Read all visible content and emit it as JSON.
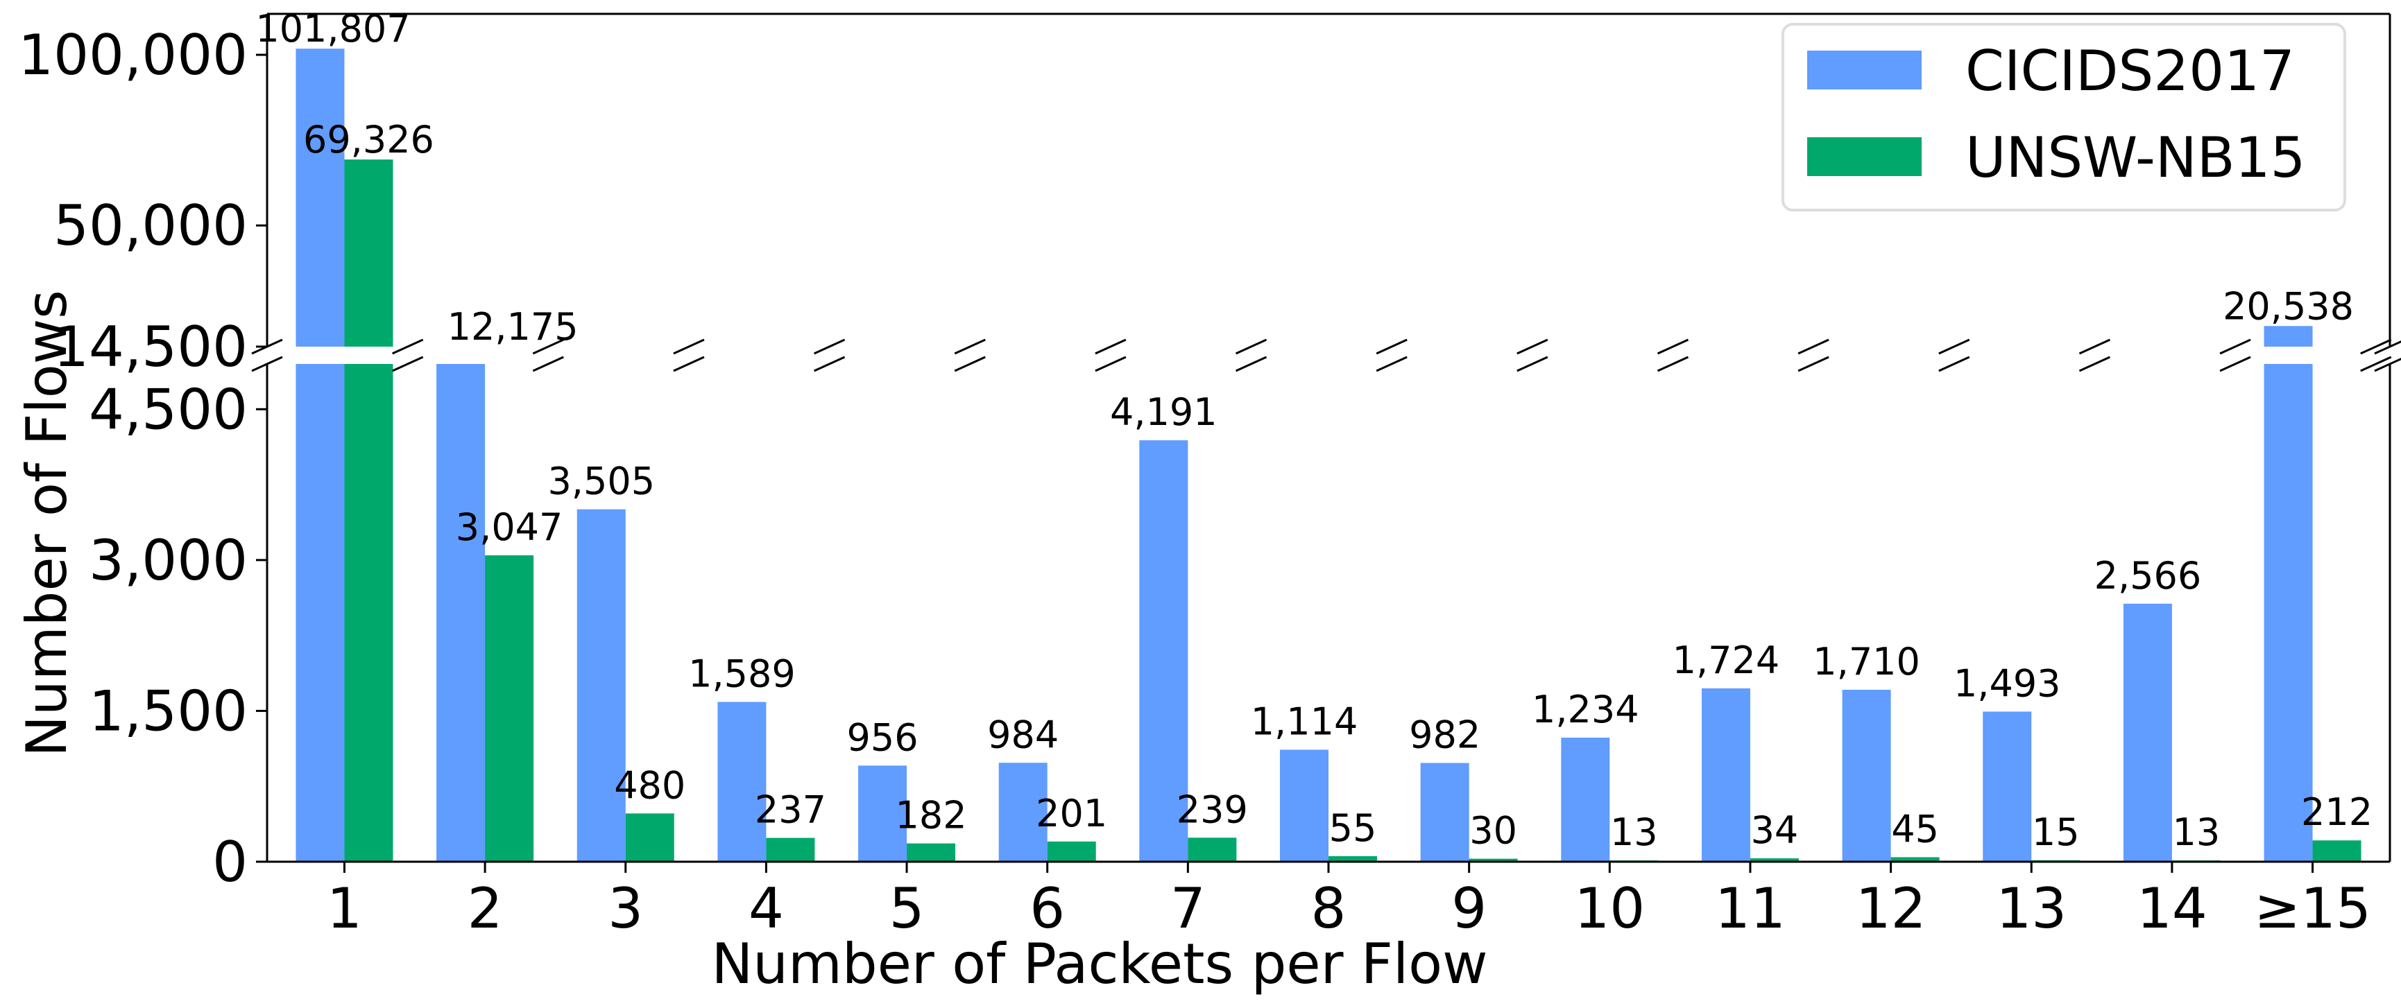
{
  "chart_data": {
    "type": "bar",
    "xlabel": "Number of Packets per Flow",
    "ylabel": "Number of Flows",
    "categories": [
      "1",
      "2",
      "3",
      "4",
      "5",
      "6",
      "7",
      "8",
      "9",
      "10",
      "11",
      "12",
      "13",
      "14",
      "≥15"
    ],
    "series": [
      {
        "name": "CICIDS2017",
        "color": "#619cff",
        "values": [
          101807,
          12175,
          3505,
          1589,
          956,
          984,
          4191,
          1114,
          982,
          1234,
          1724,
          1710,
          1493,
          2566,
          20538
        ],
        "labels": [
          "101,807",
          "12,175",
          "3,505",
          "1,589",
          "956",
          "984",
          "4,191",
          "1,114",
          "982",
          "1,234",
          "1,724",
          "1,710",
          "1,493",
          "2,566",
          "20,538"
        ]
      },
      {
        "name": "UNSW-NB15",
        "color": "#00a86b",
        "values": [
          69326,
          3047,
          480,
          237,
          182,
          201,
          239,
          55,
          30,
          13,
          34,
          45,
          15,
          13,
          212
        ],
        "labels": [
          "69,326",
          "3,047",
          "480",
          "237",
          "182",
          "201",
          "239",
          "55",
          "30",
          "13",
          "34",
          "45",
          "15",
          "13",
          "212"
        ]
      }
    ],
    "broken_axis": {
      "lower_range": [
        0,
        4950
      ],
      "upper_range": [
        14500,
        112000
      ],
      "lower_ticks": [
        0,
        1500,
        3000,
        4500
      ],
      "lower_tick_labels": [
        "0",
        "1,500",
        "3,000",
        "4,500"
      ],
      "upper_ticks": [
        14500,
        50000,
        100000
      ],
      "upper_tick_labels": [
        "14,500",
        "50,000",
        "100,000"
      ]
    },
    "grid": false,
    "legend_position": "top-right"
  }
}
